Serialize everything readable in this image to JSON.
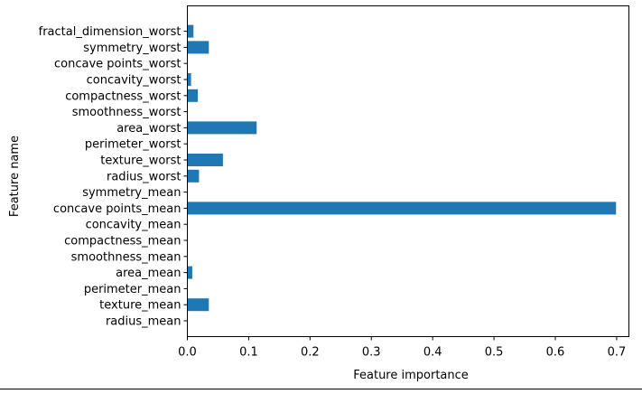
{
  "chart_data": {
    "type": "bar",
    "orientation": "horizontal",
    "title": "",
    "xlabel": "Feature importance",
    "ylabel": "Feature name",
    "xlim": [
      0,
      0.72
    ],
    "xticks": [
      "0.0",
      "0.1",
      "0.2",
      "0.3",
      "0.4",
      "0.5",
      "0.6",
      "0.7"
    ],
    "grid": false,
    "color": "#1f77b4",
    "categories": [
      "radius_mean",
      "texture_mean",
      "perimeter_mean",
      "area_mean",
      "smoothness_mean",
      "compactness_mean",
      "concavity_mean",
      "concave points_mean",
      "symmetry_mean",
      "radius_worst",
      "texture_worst",
      "perimeter_worst",
      "area_worst",
      "smoothness_worst",
      "compactness_worst",
      "concavity_worst",
      "concave points_worst",
      "symmetry_worst",
      "fractal_dimension_worst"
    ],
    "values": [
      0.0,
      0.035,
      0.0,
      0.008,
      0.0,
      0.0,
      0.0,
      0.699,
      0.0,
      0.019,
      0.058,
      0.0,
      0.113,
      0.0,
      0.017,
      0.006,
      0.0,
      0.035,
      0.01
    ]
  }
}
